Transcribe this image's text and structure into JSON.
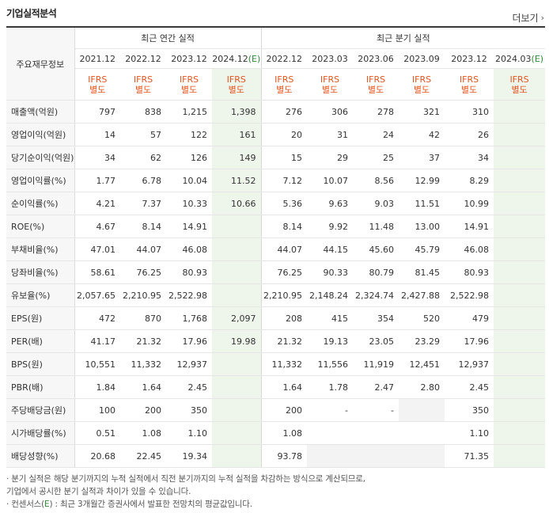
{
  "header": {
    "title": "기업실적분석",
    "more_label": "더보기"
  },
  "table": {
    "corner_label": "주요재무정보",
    "annual_group": "최근 연간 실적",
    "quarterly_group": "최근 분기 실적",
    "columns": [
      {
        "date": "2021.12",
        "est": false
      },
      {
        "date": "2022.12",
        "est": false
      },
      {
        "date": "2023.12",
        "est": false
      },
      {
        "date": "2024.12",
        "est": true,
        "est_mark": "(E)"
      },
      {
        "date": "2022.12",
        "est": false
      },
      {
        "date": "2023.03",
        "est": false
      },
      {
        "date": "2023.06",
        "est": false
      },
      {
        "date": "2023.09",
        "est": false
      },
      {
        "date": "2023.12",
        "est": false
      },
      {
        "date": "2024.03",
        "est": true,
        "est_mark": "(E)"
      }
    ],
    "ifrs_line1": "IFRS",
    "ifrs_line2": "별도",
    "rows": [
      {
        "label": "매출액(억원)",
        "group_start": false,
        "values": [
          "797",
          "838",
          "1,215",
          "1,398",
          "276",
          "306",
          "278",
          "321",
          "310",
          ""
        ]
      },
      {
        "label": "영업이익(억원)",
        "group_start": false,
        "values": [
          "14",
          "57",
          "122",
          "161",
          "20",
          "31",
          "24",
          "42",
          "26",
          ""
        ]
      },
      {
        "label": "당기순이익(억원)",
        "group_start": false,
        "values": [
          "34",
          "62",
          "126",
          "149",
          "15",
          "29",
          "25",
          "37",
          "34",
          ""
        ]
      },
      {
        "label": "영업이익률(%)",
        "group_start": true,
        "values": [
          "1.77",
          "6.78",
          "10.04",
          "11.52",
          "7.12",
          "10.07",
          "8.56",
          "12.99",
          "8.29",
          ""
        ]
      },
      {
        "label": "순이익률(%)",
        "group_start": false,
        "values": [
          "4.21",
          "7.37",
          "10.33",
          "10.66",
          "5.36",
          "9.63",
          "9.03",
          "11.51",
          "10.99",
          ""
        ]
      },
      {
        "label": "ROE(%)",
        "group_start": false,
        "values": [
          "4.67",
          "8.14",
          "14.91",
          "",
          "8.14",
          "9.92",
          "11.48",
          "13.00",
          "14.91",
          ""
        ]
      },
      {
        "label": "부채비율(%)",
        "group_start": true,
        "values": [
          "47.01",
          "44.07",
          "46.08",
          "",
          "44.07",
          "44.15",
          "45.60",
          "45.79",
          "46.08",
          ""
        ]
      },
      {
        "label": "당좌비율(%)",
        "group_start": false,
        "values": [
          "58.61",
          "76.25",
          "80.93",
          "",
          "76.25",
          "90.33",
          "80.79",
          "81.45",
          "80.93",
          ""
        ]
      },
      {
        "label": "유보율(%)",
        "group_start": false,
        "values": [
          "2,057.65",
          "2,210.95",
          "2,522.98",
          "",
          "2,210.95",
          "2,148.24",
          "2,324.74",
          "2,427.88",
          "2,522.98",
          ""
        ]
      },
      {
        "label": "EPS(원)",
        "group_start": true,
        "values": [
          "472",
          "870",
          "1,768",
          "2,097",
          "208",
          "415",
          "354",
          "520",
          "479",
          ""
        ]
      },
      {
        "label": "PER(배)",
        "group_start": false,
        "values": [
          "41.17",
          "21.32",
          "17.96",
          "19.98",
          "21.32",
          "19.13",
          "23.05",
          "23.29",
          "17.96",
          ""
        ]
      },
      {
        "label": "BPS(원)",
        "group_start": false,
        "values": [
          "10,551",
          "11,332",
          "12,937",
          "",
          "11,332",
          "11,556",
          "11,919",
          "12,451",
          "12,937",
          ""
        ]
      },
      {
        "label": "PBR(배)",
        "group_start": false,
        "values": [
          "1.84",
          "1.64",
          "2.45",
          "",
          "1.64",
          "1.78",
          "2.47",
          "2.80",
          "2.45",
          ""
        ]
      },
      {
        "label": "주당배당금(원)",
        "group_start": true,
        "values": [
          "100",
          "200",
          "350",
          "",
          "200",
          "-",
          "-",
          "",
          "350",
          ""
        ],
        "grey": [
          7
        ]
      },
      {
        "label": "시가배당률(%)",
        "group_start": false,
        "values": [
          "0.51",
          "1.08",
          "1.10",
          "",
          "1.08",
          "",
          "",
          "",
          "1.10",
          ""
        ]
      },
      {
        "label": "배당성향(%)",
        "group_start": false,
        "values": [
          "20.68",
          "22.45",
          "19.34",
          "",
          "93.78",
          "",
          "",
          "",
          "71.35",
          ""
        ],
        "grey": [
          5,
          6,
          7
        ]
      }
    ]
  },
  "notes": {
    "n1a": "· 분기 실적은 해당 분기까지의 누적 실적에서 직전 분기까지의 누적 실적을 차감하는 방식으로 계산되므로,",
    "n1b": "  기업에서 공시한 분기 실적과 차이가 있을 수 있습니다.",
    "n2_pre": "· 컨센서스(",
    "n2_e": "E",
    "n2_post": ") : 최근 3개월간 증권사에서 발표한 전망치의 평균값입니다."
  }
}
